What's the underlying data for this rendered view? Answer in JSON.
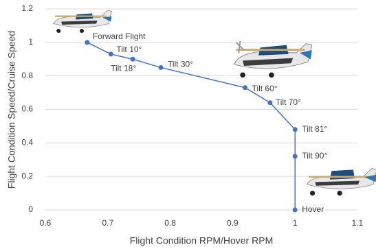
{
  "chart_data": {
    "type": "line",
    "xlabel": "Flight Condition RPM/Hover RPM",
    "ylabel": "Flight Condition Speed/Cruise Speed",
    "series": [
      {
        "color": "#4472c4",
        "x": [
          0.667,
          0.705,
          0.74,
          0.785,
          0.92,
          0.96,
          1.0,
          1.0,
          1.0
        ],
        "values": [
          1.0,
          0.93,
          0.9,
          0.85,
          0.73,
          0.64,
          0.48,
          0.32,
          0
        ],
        "point_labels": [
          "Forward Flight",
          "Tilt 10°",
          "Tilt 18°",
          "Tilt 30°",
          "Tilt 60°",
          "Tilt 70°",
          "Tilt 81°",
          "Tilt 90°",
          "Hover"
        ]
      }
    ],
    "xlim": [
      0.6,
      1.1
    ],
    "xticks": [
      0.6,
      0.7,
      0.8,
      0.9,
      1,
      1.1
    ],
    "ylim": [
      0,
      1.2
    ],
    "yticks": [
      0,
      0.2,
      0.4,
      0.6,
      0.8,
      1,
      1.2
    ],
    "grid": true
  }
}
